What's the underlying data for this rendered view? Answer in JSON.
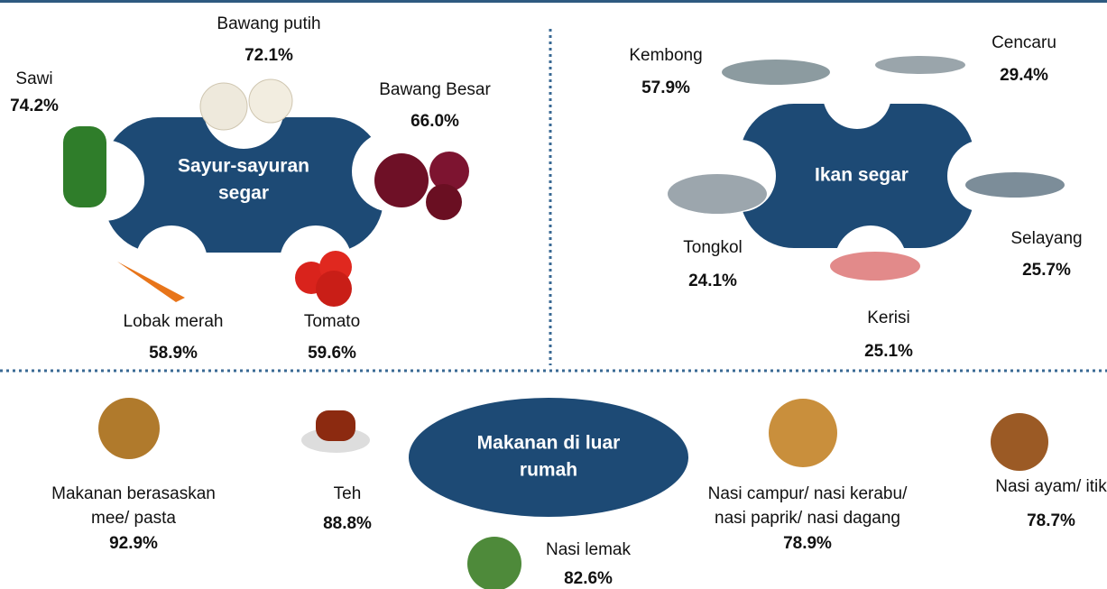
{
  "sections": [
    {
      "title_lines": [
        "Sayur-sayuran",
        "segar"
      ],
      "items": [
        {
          "label_lines": [
            "Sawi"
          ],
          "value": "74.2%"
        },
        {
          "label_lines": [
            "Bawang putih"
          ],
          "value": "72.1%"
        },
        {
          "label_lines": [
            "Bawang Besar"
          ],
          "value": "66.0%"
        },
        {
          "label_lines": [
            "Lobak merah"
          ],
          "value": "58.9%"
        },
        {
          "label_lines": [
            "Tomato"
          ],
          "value": "59.6%"
        }
      ]
    },
    {
      "title_lines": [
        "Ikan segar"
      ],
      "items": [
        {
          "label_lines": [
            "Kembong"
          ],
          "value": "57.9%"
        },
        {
          "label_lines": [
            "Cencaru"
          ],
          "value": "29.4%"
        },
        {
          "label_lines": [
            "Selayang"
          ],
          "value": "25.7%"
        },
        {
          "label_lines": [
            "Kerisi"
          ],
          "value": "25.1%"
        },
        {
          "label_lines": [
            "Tongkol"
          ],
          "value": "24.1%"
        }
      ]
    },
    {
      "title_lines": [
        "Makanan di luar",
        "rumah"
      ],
      "items": [
        {
          "label_lines": [
            "Makanan berasaskan",
            "mee/ pasta"
          ],
          "value": "92.9%"
        },
        {
          "label_lines": [
            "Teh"
          ],
          "value": "88.8%"
        },
        {
          "label_lines": [
            "Nasi lemak"
          ],
          "value": "82.6%"
        },
        {
          "label_lines": [
            "Nasi campur/ nasi kerabu/",
            "nasi paprik/ nasi dagang"
          ],
          "value": "78.9%"
        },
        {
          "label_lines": [
            "Nasi ayam/ itik"
          ],
          "value": "78.7%"
        }
      ]
    }
  ]
}
